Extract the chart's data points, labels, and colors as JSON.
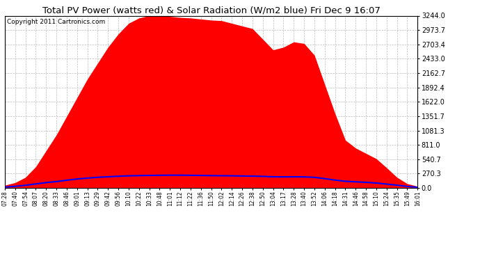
{
  "title": "Total PV Power (watts red) & Solar Radiation (W/m2 blue) Fri Dec 9 16:07",
  "copyright": "Copyright 2011 Cartronics.com",
  "ymax": 3244.0,
  "yticks": [
    0.0,
    270.3,
    540.7,
    811.0,
    1081.3,
    1351.7,
    1622.0,
    1892.4,
    2162.7,
    2433.0,
    2703.4,
    2973.7,
    3244.0
  ],
  "x_labels": [
    "07:28",
    "07:40",
    "07:54",
    "08:07",
    "08:20",
    "08:33",
    "08:46",
    "09:01",
    "09:13",
    "09:29",
    "09:42",
    "09:56",
    "10:10",
    "10:22",
    "10:33",
    "10:48",
    "11:01",
    "11:12",
    "11:22",
    "11:36",
    "11:50",
    "12:02",
    "12:14",
    "12:26",
    "12:38",
    "12:50",
    "13:04",
    "13:17",
    "13:28",
    "13:40",
    "13:52",
    "14:06",
    "14:18",
    "14:31",
    "14:46",
    "14:58",
    "15:10",
    "15:24",
    "15:35",
    "15:49",
    "16:01"
  ],
  "pv_power": [
    50,
    100,
    200,
    400,
    700,
    1000,
    1350,
    1700,
    2050,
    2350,
    2650,
    2900,
    3100,
    3200,
    3244,
    3244,
    3230,
    3210,
    3200,
    3180,
    3160,
    3150,
    3100,
    3050,
    3000,
    2800,
    2600,
    2650,
    2750,
    2720,
    2500,
    1950,
    1400,
    900,
    750,
    650,
    550,
    380,
    200,
    80,
    30
  ],
  "solar_rad": [
    15,
    30,
    50,
    75,
    100,
    120,
    145,
    168,
    185,
    200,
    210,
    220,
    228,
    232,
    235,
    238,
    240,
    240,
    238,
    235,
    232,
    230,
    228,
    225,
    222,
    218,
    210,
    208,
    210,
    208,
    200,
    175,
    148,
    125,
    115,
    105,
    92,
    72,
    52,
    28,
    12
  ],
  "pv_color": "#FF0000",
  "solar_color": "#0000FF",
  "bg_color": "#FFFFFF",
  "grid_color": "#BBBBBB",
  "title_fontsize": 9.5,
  "copyright_fontsize": 6.5,
  "title_bg": "#FFFFFF"
}
